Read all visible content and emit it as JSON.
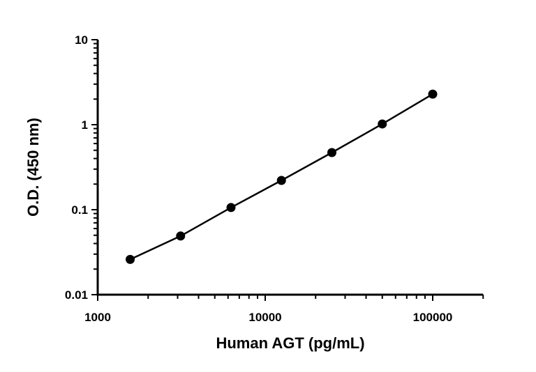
{
  "chart_data": {
    "type": "scatter",
    "title": "",
    "xlabel": "Human AGT (pg/mL)",
    "ylabel": "O.D. (450 nm)",
    "xscale": "log",
    "yscale": "log",
    "xlim": [
      1000,
      200000
    ],
    "ylim": [
      0.01,
      10
    ],
    "xticks": [
      1000,
      10000,
      100000
    ],
    "xtick_labels": [
      "1000",
      "10000",
      "100000"
    ],
    "yticks": [
      0.01,
      0.1,
      1,
      10
    ],
    "ytick_labels": [
      "0.01",
      "0.1",
      "1",
      "10"
    ],
    "grid": false,
    "legend": "none",
    "colors": {
      "marker": "#000000",
      "line": "#000000"
    },
    "series": [
      {
        "x": [
          1562.5,
          3125,
          6250,
          12500,
          25000,
          50000,
          100000
        ],
        "y": [
          0.026,
          0.049,
          0.106,
          0.221,
          0.47,
          1.02,
          2.29
        ],
        "marker": "filled-circle",
        "fit_line": true
      }
    ]
  }
}
